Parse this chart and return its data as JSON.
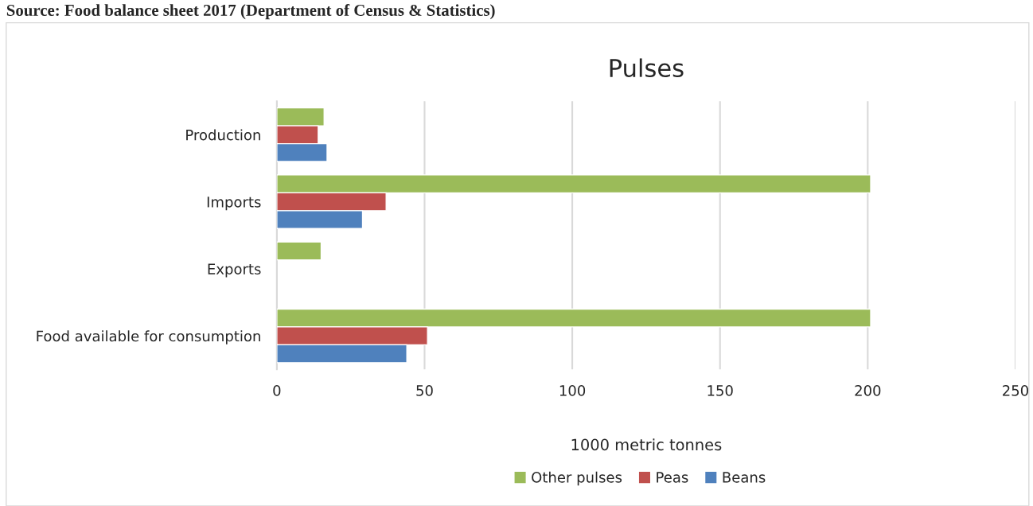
{
  "chart_data": {
    "type": "bar",
    "orientation": "horizontal",
    "title": "Pulses",
    "xlabel": "1000 metric tonnes",
    "annotations": [
      "Source: Food balance sheet 2017 (Department of Census & Statistics)"
    ],
    "categories": [
      "Production",
      "Imports",
      "Exports",
      "Food available for consumption"
    ],
    "series": [
      {
        "name": "Other pulses",
        "color": "#9bbb59",
        "values": [
          16,
          201,
          15,
          201
        ]
      },
      {
        "name": "Peas",
        "color": "#c0504d",
        "values": [
          14,
          37,
          null,
          51
        ]
      },
      {
        "name": "Beans",
        "color": "#4f81bd",
        "values": [
          17,
          29,
          null,
          44
        ]
      }
    ],
    "xlim": [
      0,
      250
    ],
    "xticks": [
      0,
      50,
      100,
      150,
      200,
      250
    ],
    "grid": "x",
    "legend": "bottom"
  }
}
